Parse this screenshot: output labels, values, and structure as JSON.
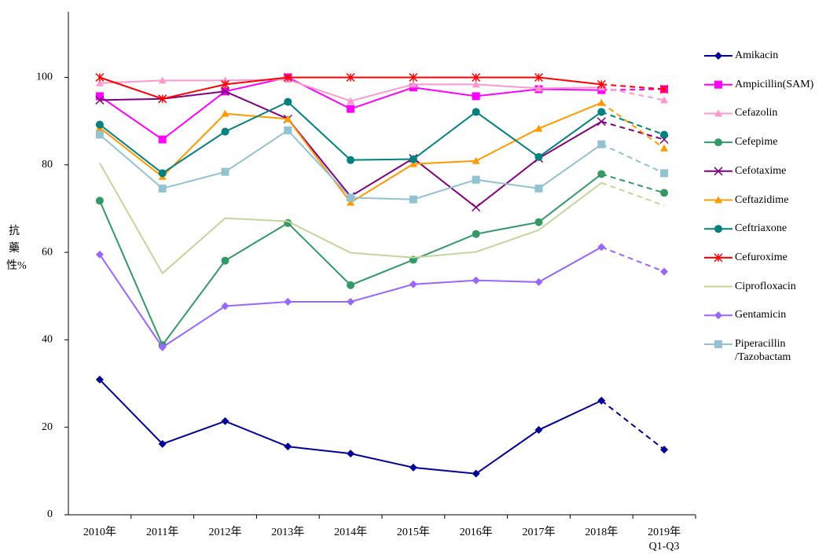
{
  "chart_data": {
    "type": "line",
    "y_label": "抗藥性%",
    "categories": [
      "2010年",
      "2011年",
      "2012年",
      "2013年",
      "2014年",
      "2015年",
      "2016年",
      "2017年",
      "2018年",
      "2019年\nQ1-Q3"
    ],
    "ylim": [
      0,
      115
    ],
    "yticks": [
      0,
      20,
      40,
      60,
      80,
      100
    ],
    "grid": false,
    "series": [
      {
        "name": "Amikacin",
        "color": "#000099",
        "marker": "diamond",
        "values": [
          30.9,
          16.2,
          21.4,
          15.6,
          14.0,
          10.8,
          9.4,
          19.4,
          26.1,
          14.9
        ]
      },
      {
        "name": "Ampicillin(SAM)",
        "color": "#ff00ff",
        "marker": "square",
        "values": [
          95.7,
          85.8,
          96.8,
          100,
          92.8,
          97.7,
          95.7,
          97.3,
          97.1,
          97.3
        ]
      },
      {
        "name": "Cefazolin",
        "color": "#ff99cc",
        "marker": "triangle",
        "values": [
          98.7,
          99.3,
          99.3,
          99.5,
          94.6,
          98.4,
          98.4,
          97.5,
          97.7,
          94.8
        ]
      },
      {
        "name": "Cefepime",
        "color": "#339966",
        "marker": "circle",
        "values": [
          71.8,
          38.8,
          58.1,
          66.7,
          52.5,
          58.3,
          64.2,
          66.9,
          77.9,
          73.6
        ]
      },
      {
        "name": "Cefotaxime",
        "color": "#800080",
        "marker": "x",
        "values": [
          94.8,
          95.1,
          96.8,
          90.5,
          72.8,
          81.5,
          70.3,
          81.5,
          89.9,
          85.8
        ]
      },
      {
        "name": "Ceftazidime",
        "color": "#ff9900",
        "marker": "triangle",
        "values": [
          88.5,
          77.3,
          91.7,
          90.5,
          71.4,
          80.2,
          80.9,
          88.3,
          94.2,
          83.8
        ]
      },
      {
        "name": "Ceftriaxone",
        "color": "#008080",
        "marker": "circle",
        "values": [
          89.2,
          78.1,
          87.6,
          94.4,
          81.1,
          81.3,
          92.1,
          81.8,
          92.1,
          86.9
        ]
      },
      {
        "name": "Cefuroxime",
        "color": "#ff0000",
        "marker": "asterisk",
        "values": [
          100,
          95.1,
          98.4,
          100,
          100,
          100,
          100,
          100,
          98.4,
          97.3
        ]
      },
      {
        "name": "Ciprofloxacin",
        "color": "#c3d69b",
        "marker": "none",
        "values": [
          80.4,
          55.2,
          67.8,
          67.1,
          59.9,
          58.8,
          60.1,
          65.1,
          75.9,
          70.7
        ]
      },
      {
        "name": "Gentamicin",
        "color": "#9966ff",
        "marker": "diamond",
        "values": [
          59.5,
          38.3,
          47.7,
          48.7,
          48.7,
          52.7,
          53.6,
          53.2,
          61.2,
          55.6
        ]
      },
      {
        "name": "Piperacillin\n/Tazobactam",
        "color": "#93c2d2",
        "marker": "square",
        "values": [
          86.9,
          74.6,
          78.4,
          87.9,
          72.5,
          72.1,
          76.6,
          74.6,
          84.7,
          78.1
        ]
      }
    ]
  }
}
